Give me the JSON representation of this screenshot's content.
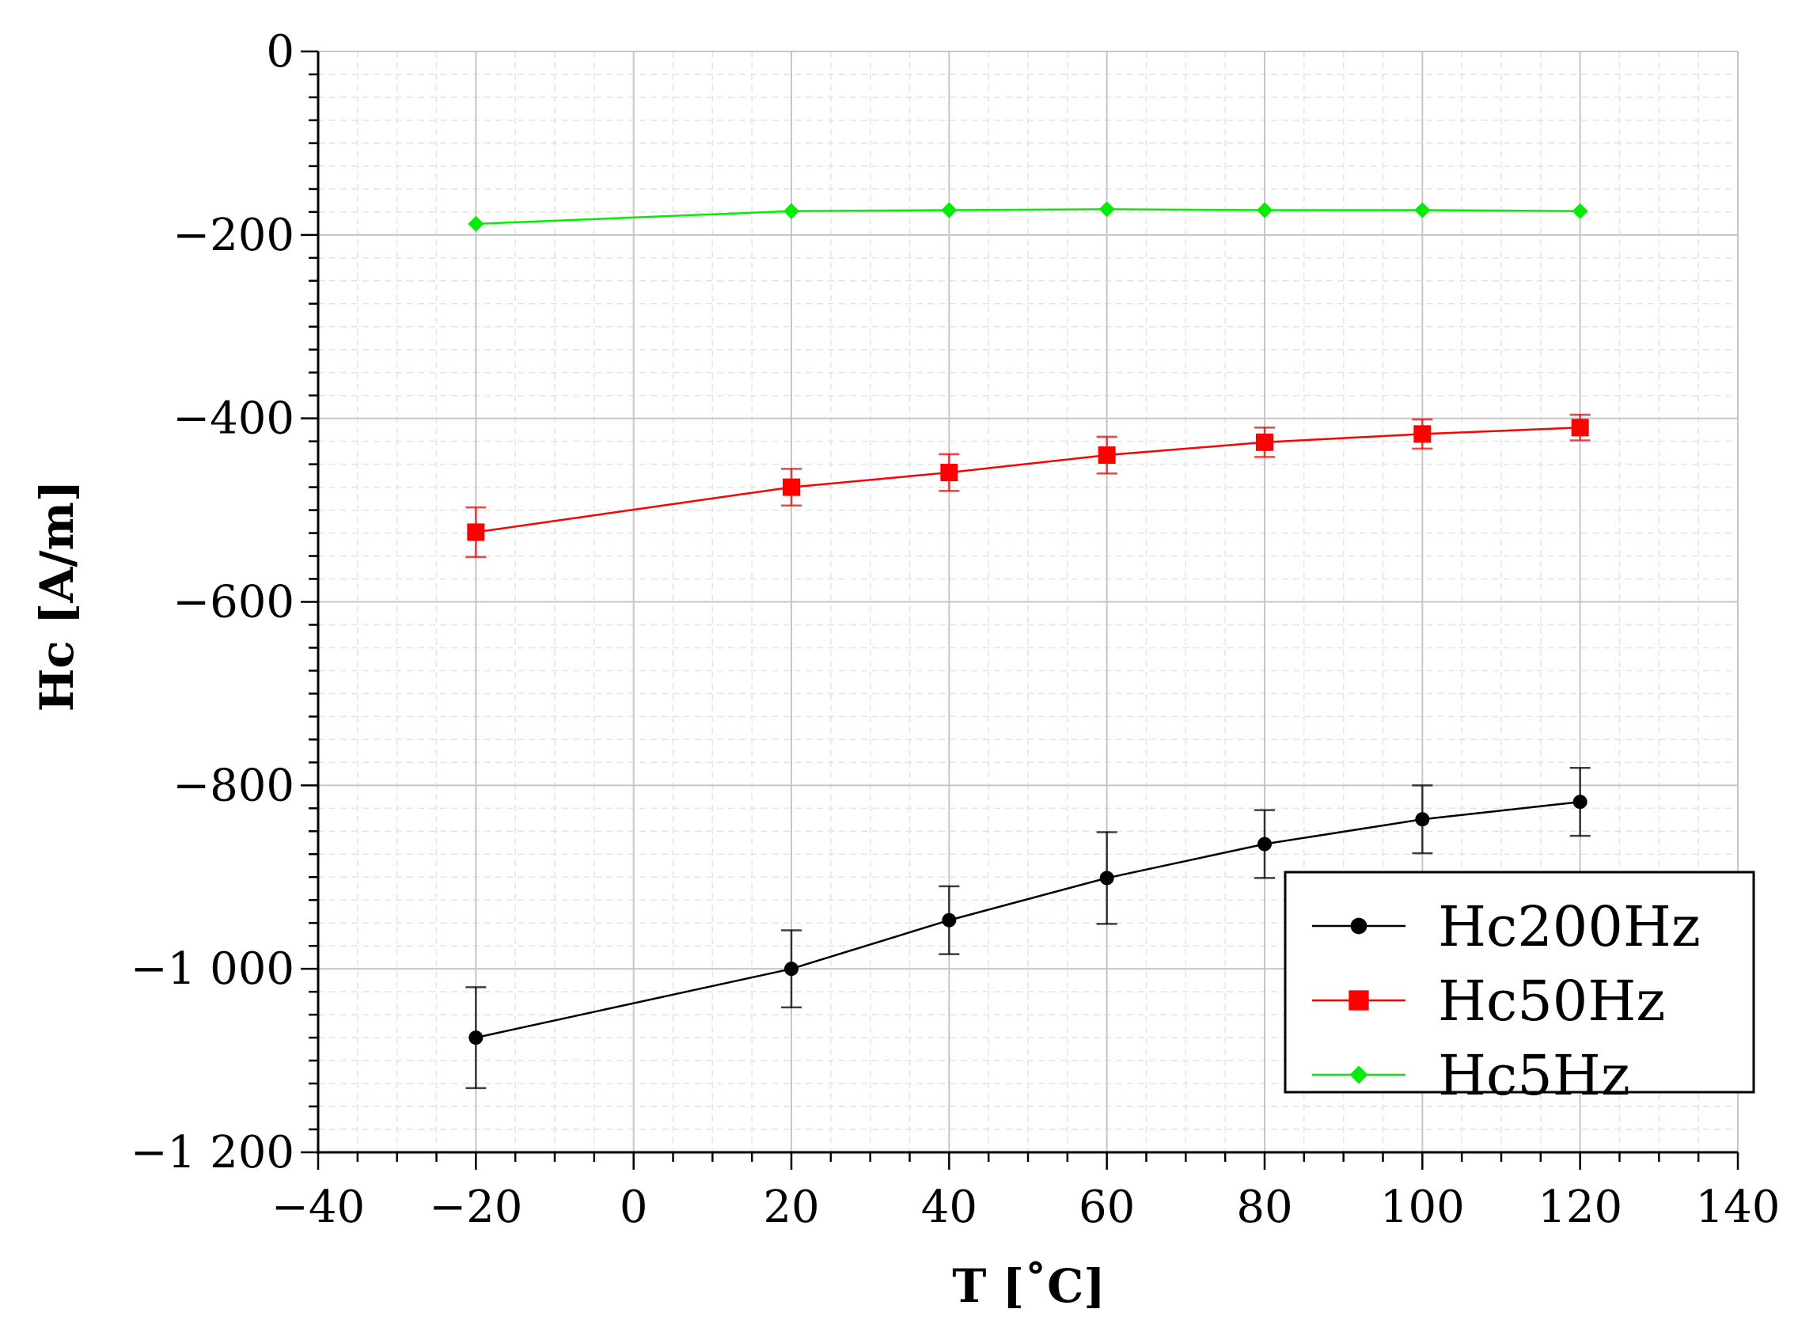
{
  "chart_data": {
    "type": "line",
    "title": "",
    "xlabel": "T [˚C]",
    "ylabel": "Hc [A/m]",
    "xlim": [
      -40,
      140
    ],
    "ylim": [
      -1200,
      0
    ],
    "x_ticks": [
      -40,
      -20,
      0,
      20,
      40,
      60,
      80,
      100,
      120,
      140
    ],
    "x_tick_labels": [
      "−40",
      "−20",
      "0",
      "20",
      "40",
      "60",
      "80",
      "100",
      "120",
      "140"
    ],
    "y_ticks": [
      0,
      -200,
      -400,
      -600,
      -800,
      -1000,
      -1200
    ],
    "y_tick_labels": [
      "0",
      "−200",
      "−400",
      "−600",
      "−800",
      "−1 000",
      "−1 200"
    ],
    "grid": true,
    "legend_position": "bottom-right",
    "x": [
      -20,
      20,
      40,
      60,
      80,
      100,
      120
    ],
    "series": [
      {
        "name": "Hc200Hz",
        "color": "#000000",
        "marker": "circle",
        "values": [
          -1075,
          -1000,
          -947,
          -901,
          -864,
          -837,
          -818
        ],
        "errors": [
          55,
          42,
          37,
          50,
          37,
          37,
          37
        ]
      },
      {
        "name": "Hc50Hz",
        "color": "#ff0000",
        "marker": "square",
        "values": [
          -524,
          -475,
          -459,
          -440,
          -426,
          -417,
          -410
        ],
        "errors": [
          27,
          20,
          20,
          20,
          16,
          16,
          14
        ]
      },
      {
        "name": "Hc5Hz",
        "color": "#00ee00",
        "marker": "diamond",
        "values": [
          -188,
          -174,
          -173,
          -172,
          -173,
          -173,
          -174
        ],
        "errors": [
          0,
          0,
          0,
          0,
          0,
          0,
          0
        ]
      }
    ]
  }
}
